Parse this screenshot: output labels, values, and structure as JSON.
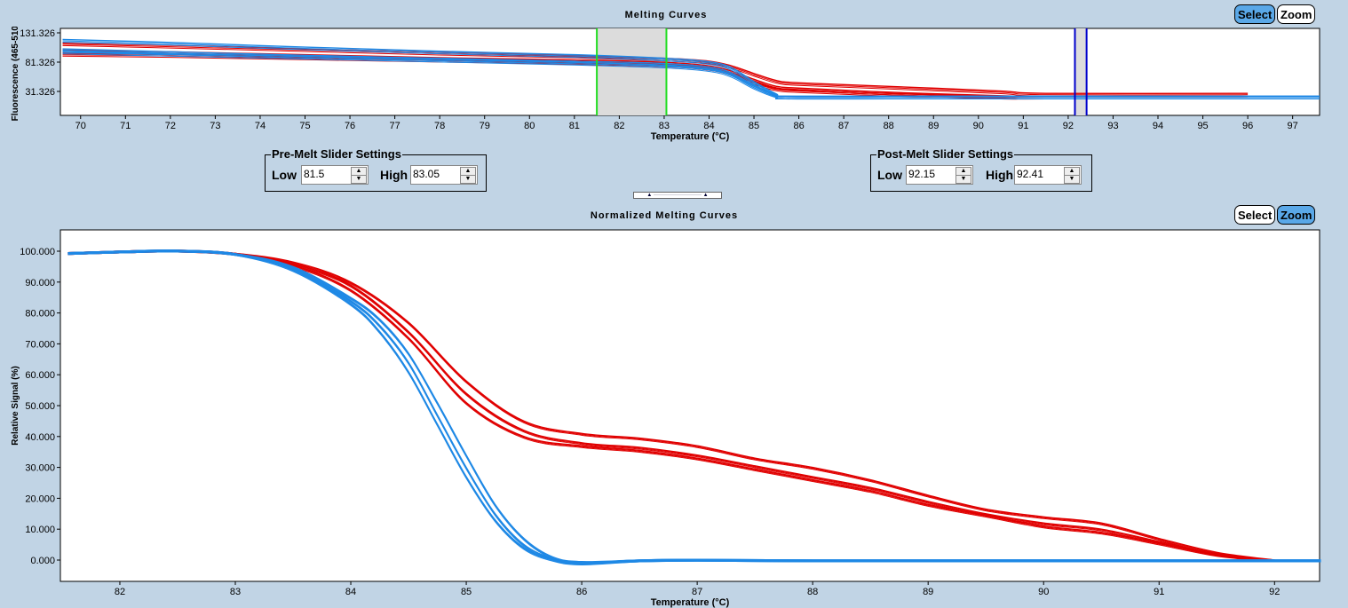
{
  "chart_data": [
    {
      "type": "line",
      "title": "Melting Curves",
      "xlabel": "Temperature (°C)",
      "ylabel": "Fluorescence (465-510)",
      "xlim": [
        69.55,
        97.6
      ],
      "ylim": [
        -9.6,
        138.9
      ],
      "xticks": [
        70,
        71,
        72,
        73,
        74,
        75,
        76,
        77,
        78,
        79,
        80,
        81,
        82,
        83,
        84,
        85,
        86,
        87,
        88,
        89,
        90,
        91,
        92,
        93,
        94,
        95,
        96,
        97
      ],
      "yticks": [
        131.326,
        81.326,
        31.326
      ],
      "ytick_labels": [
        "131.326",
        "81.326",
        "31.326"
      ],
      "pre_melt_region": [
        81.5,
        83.05
      ],
      "post_melt_region": [
        92.15,
        92.41
      ],
      "series": [
        {
          "name": "red-1",
          "color": "#e00000",
          "x": [
            69.6,
            72,
            75,
            78,
            81,
            83,
            84,
            84.5,
            85,
            85.5,
            86,
            88,
            90.5,
            91.5,
            96
          ],
          "y": [
            114,
            110,
            104,
            98,
            93,
            88,
            83,
            75,
            62,
            50,
            46,
            40,
            32,
            28,
            28
          ]
        },
        {
          "name": "red-2",
          "color": "#e00000",
          "x": [
            69.6,
            72,
            75,
            78,
            81,
            83,
            84,
            84.5,
            85,
            85.5,
            86,
            88,
            90.5,
            91.5,
            96
          ],
          "y": [
            102,
            99,
            94,
            89,
            85,
            81,
            75,
            66,
            52,
            40,
            37,
            30,
            24,
            23,
            23
          ]
        },
        {
          "name": "red-3",
          "color": "#e00000",
          "x": [
            69.6,
            72,
            75,
            78,
            81,
            83,
            84,
            84.5,
            85,
            85.5,
            86,
            88,
            90.5,
            91.5,
            96
          ],
          "y": [
            96,
            94,
            90,
            86,
            82,
            78,
            72,
            63,
            48,
            37,
            34,
            28,
            23,
            23,
            23
          ]
        },
        {
          "name": "blue-1",
          "color": "#1e88e5",
          "x": [
            69.6,
            72,
            75,
            78,
            81,
            83,
            84,
            84.5,
            85,
            85.5,
            85.7,
            88,
            91,
            97.6
          ],
          "y": [
            120,
            115,
            107,
            100,
            94,
            88,
            82,
            72,
            48,
            27,
            23,
            23,
            23,
            23
          ]
        },
        {
          "name": "blue-2",
          "color": "#1e88e5",
          "x": [
            69.6,
            72,
            75,
            78,
            81,
            83,
            84,
            84.5,
            85,
            85.5,
            85.7,
            88,
            91,
            97.6
          ],
          "y": [
            104,
            99,
            93,
            88,
            83,
            79,
            73,
            63,
            42,
            26,
            23,
            23,
            23,
            23
          ]
        },
        {
          "name": "blue-3",
          "color": "#1e88e5",
          "x": [
            69.6,
            72,
            75,
            78,
            81,
            83,
            84,
            84.5,
            85,
            85.5,
            85.7,
            88,
            91,
            97.6
          ],
          "y": [
            100,
            96,
            91,
            86,
            81,
            76,
            70,
            60,
            40,
            25,
            23,
            23,
            23,
            23
          ]
        }
      ]
    },
    {
      "type": "line",
      "title": "Normalized Melting Curves",
      "xlabel": "Temperature (°C)",
      "ylabel": "Relative Signal (%)",
      "xlim": [
        81.485,
        92.39
      ],
      "ylim": [
        -6.9,
        106.9
      ],
      "xticks": [
        82,
        83,
        84,
        85,
        86,
        87,
        88,
        89,
        90,
        91,
        92
      ],
      "yticks": [
        100,
        90,
        80,
        70,
        60,
        50,
        40,
        30,
        20,
        10,
        0
      ],
      "ytick_labels": [
        "100.000",
        "90.000",
        "80.000",
        "70.000",
        "60.000",
        "50.000",
        "40.000",
        "30.000",
        "20.000",
        "10.000",
        "0.000"
      ],
      "series": [
        {
          "name": "red-1",
          "color": "#e00000",
          "x": [
            81.55,
            82,
            82.5,
            83,
            83.5,
            84,
            84.5,
            85,
            85.5,
            86,
            86.5,
            87,
            87.5,
            88,
            88.5,
            89,
            89.5,
            90,
            90.5,
            91,
            91.5,
            92
          ],
          "y": [
            99.5,
            100,
            100.3,
            99.3,
            96.5,
            90,
            77,
            58,
            45,
            41,
            39.5,
            37,
            33,
            30,
            26,
            21,
            16.5,
            14,
            12,
            7,
            2.5,
            0
          ]
        },
        {
          "name": "red-2",
          "color": "#e00000",
          "x": [
            81.55,
            82,
            82.5,
            83,
            83.5,
            84,
            84.5,
            85,
            85.5,
            86,
            86.5,
            87,
            87.5,
            88,
            88.5,
            89,
            89.5,
            90,
            90.5,
            91,
            91.5,
            92
          ],
          "y": [
            99.5,
            100,
            100.3,
            99.3,
            96,
            89,
            74,
            54,
            42,
            38,
            36.5,
            34,
            30.5,
            27,
            23.5,
            19,
            15,
            12,
            10,
            6,
            2,
            0
          ]
        },
        {
          "name": "red-3",
          "color": "#e00000",
          "x": [
            81.55,
            82,
            82.5,
            83,
            83.5,
            84,
            84.5,
            85,
            85.5,
            86,
            86.5,
            87,
            87.5,
            88,
            88.5,
            89,
            89.5,
            90,
            90.5,
            91,
            91.5,
            92
          ],
          "y": [
            99.5,
            100,
            100.3,
            99.3,
            95.5,
            87.5,
            72,
            51,
            40,
            37,
            35.5,
            33,
            29.5,
            26,
            22.5,
            18,
            14.5,
            11,
            9,
            5.5,
            1.8,
            0
          ]
        },
        {
          "name": "blue-1",
          "color": "#1e88e5",
          "x": [
            81.55,
            82,
            82.5,
            83,
            83.5,
            84,
            84.25,
            84.5,
            84.75,
            85,
            85.25,
            85.5,
            85.75,
            86,
            86.5,
            87,
            88,
            90,
            92.4
          ],
          "y": [
            99.5,
            100,
            100.3,
            99.2,
            95,
            85,
            78,
            67,
            51,
            34,
            18,
            7,
            1,
            -0.5,
            0,
            0.2,
            0,
            0,
            0
          ]
        },
        {
          "name": "blue-2",
          "color": "#1e88e5",
          "x": [
            81.55,
            82,
            82.5,
            83,
            83.5,
            84,
            84.25,
            84.5,
            84.75,
            85,
            85.25,
            85.5,
            85.75,
            86,
            86.5,
            87,
            88,
            90,
            92.4
          ],
          "y": [
            99.5,
            100,
            100.3,
            99.2,
            94.5,
            84,
            76,
            64,
            47,
            30,
            15,
            5,
            0.5,
            -0.8,
            0,
            0.2,
            0,
            0,
            0
          ]
        },
        {
          "name": "blue-3",
          "color": "#1e88e5",
          "x": [
            81.55,
            82,
            82.5,
            83,
            83.5,
            84,
            84.25,
            84.5,
            84.75,
            85,
            85.25,
            85.5,
            85.75,
            86,
            86.5,
            87,
            88,
            90,
            92.4
          ],
          "y": [
            99.5,
            100,
            100.3,
            99.2,
            94,
            83,
            74,
            61,
            44,
            27,
            13,
            4,
            0.2,
            -1,
            0,
            0.2,
            0,
            0,
            0
          ]
        }
      ]
    }
  ],
  "top_buttons": {
    "select": "Select",
    "zoom": "Zoom"
  },
  "bottom_buttons": {
    "select": "Select",
    "zoom": "Zoom"
  },
  "pre_melt": {
    "legend": "Pre-Melt Slider Settings",
    "low_label": "Low",
    "low": "81.5",
    "high_label": "High",
    "high": "83.05"
  },
  "post_melt": {
    "legend": "Post-Melt Slider Settings",
    "low_label": "Low",
    "low": "92.15",
    "high_label": "High",
    "high": "92.41"
  }
}
